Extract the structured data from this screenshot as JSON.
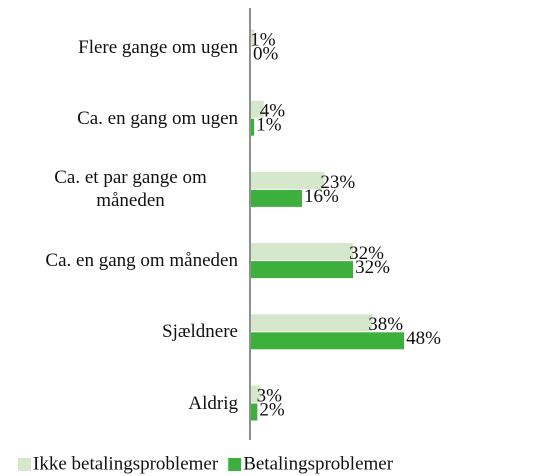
{
  "chart_data": {
    "type": "hbar",
    "categories": [
      "Flere gange om ugen",
      "Ca. en gang om ugen",
      "Ca. et par gange om måneden",
      "Ca. en gang om måneden",
      "Sjældnere",
      "Aldrig"
    ],
    "series": [
      {
        "name": "Ikke betalingsproblemer",
        "color": "#d5e8cc",
        "values": [
          1,
          4,
          23,
          32,
          38,
          3
        ],
        "value_labels": [
          "1%",
          "4%",
          "23%",
          "32%",
          "38%",
          "3%"
        ]
      },
      {
        "name": "Betalingsproblemer",
        "color": "#3daf3d",
        "values": [
          0,
          1,
          16,
          32,
          48,
          2
        ],
        "value_labels": [
          "0%",
          "1%",
          "16%",
          "32%",
          "48%",
          "2%"
        ]
      }
    ]
  }
}
